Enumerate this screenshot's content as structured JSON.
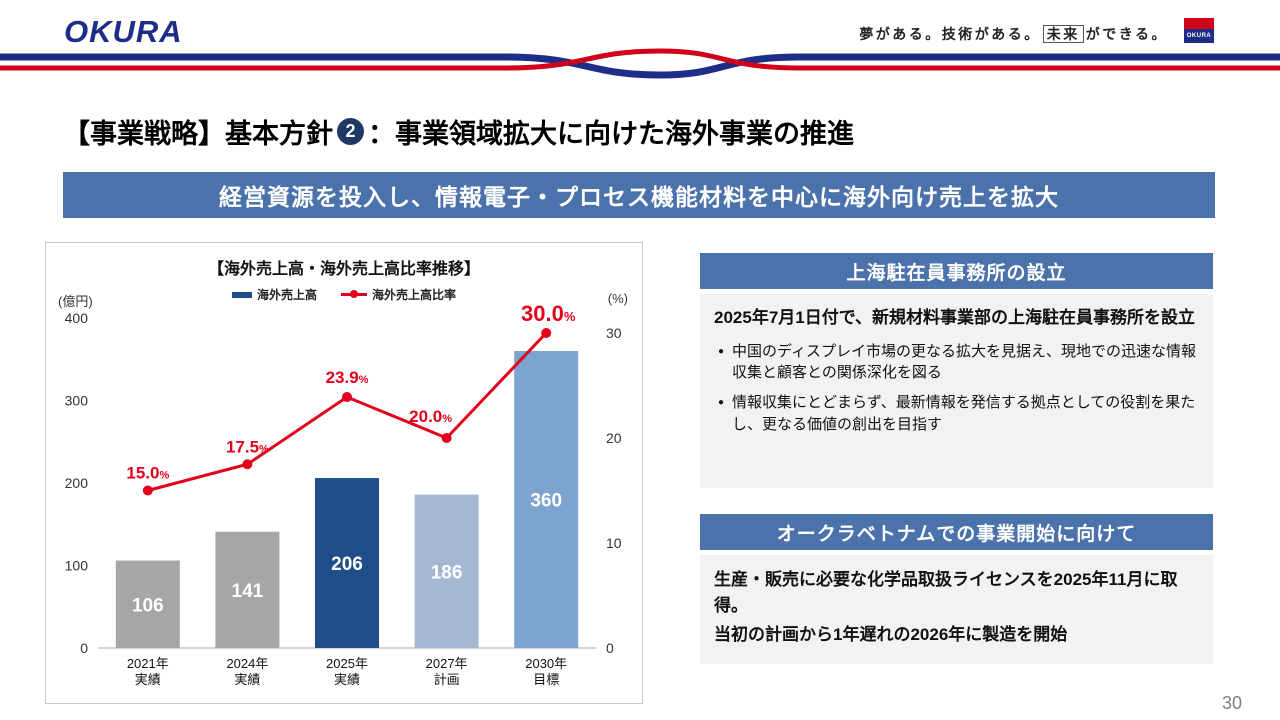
{
  "header": {
    "logo_text": "OKURA",
    "tagline_part1": "夢がある。技術がある。",
    "tagline_boxed": "未来",
    "tagline_part2": "ができる。",
    "mark_text": "OKURA"
  },
  "title": {
    "prefix": "【事業戦略】基本方針",
    "badge": "2",
    "suffix": "：事業領域拡大に向けた海外事業の推進"
  },
  "banner": "経営資源を投入し、情報電子・プロセス機能材料を中心に海外向け売上を拡大",
  "chart_data": {
    "type": "bar+line",
    "title": "【海外売上高・海外売上高比率推移】",
    "legend": [
      "海外売上高",
      "海外売上高比率"
    ],
    "left_axis": {
      "unit": "(億円)",
      "max": 400,
      "ticks": [
        0,
        100,
        200,
        300,
        400
      ]
    },
    "right_axis": {
      "unit": "(%)",
      "max": 30,
      "ticks": [
        0,
        10,
        20,
        30
      ]
    },
    "categories": [
      [
        "2021年",
        "実績"
      ],
      [
        "2024年",
        "実績"
      ],
      [
        "2025年",
        "実績"
      ],
      [
        "2027年",
        "計画"
      ],
      [
        "2030年",
        "目標"
      ]
    ],
    "series": [
      {
        "name": "海外売上高",
        "type": "bar",
        "values": [
          106,
          141,
          206,
          186,
          360
        ],
        "colors": [
          "#a6a6a6",
          "#a6a6a6",
          "#1f4e89",
          "#a4b8d4",
          "#7da3cf"
        ]
      },
      {
        "name": "海外売上高比率",
        "type": "line",
        "values": [
          15.0,
          17.5,
          23.9,
          20.0,
          30.0
        ],
        "labels": [
          "15.0",
          "17.5",
          "23.9",
          "20.0",
          "30.0"
        ],
        "color": "#e3001b"
      }
    ]
  },
  "panel_shanghai": {
    "header": "上海駐在員事務所の設立",
    "intro": "2025年7月1日付で、新規材料事業部の上海駐在員事務所を設立",
    "bullets": [
      "中国のディスプレイ市場の更なる拡大を見据え、現地での迅速な情報収集と顧客との関係深化を図る",
      "情報収集にとどまらず、最新情報を発信する拠点としての役割を果たし、更なる価値の創出を目指す"
    ]
  },
  "panel_vietnam": {
    "header": "オークラベトナムでの事業開始に向けて",
    "lines": [
      "生産・販売に必要な化学品取扱ライセンスを2025年11月に取得。",
      "当初の計画から1年遅れの2026年に製造を開始"
    ]
  },
  "page_number": "30",
  "colors": {
    "accent_blue": "#4b72aa",
    "navy_bar": "#1f4e89",
    "light_blue_bar": "#7da3cf",
    "pale_blue_bar": "#a4b8d4",
    "gray_bar": "#a6a6a6",
    "line_red": "#e3001b",
    "logo_navy": "#1e2d87",
    "ribbon_red": "#d0021b",
    "panel_body_bg": "#f2f2f2"
  }
}
